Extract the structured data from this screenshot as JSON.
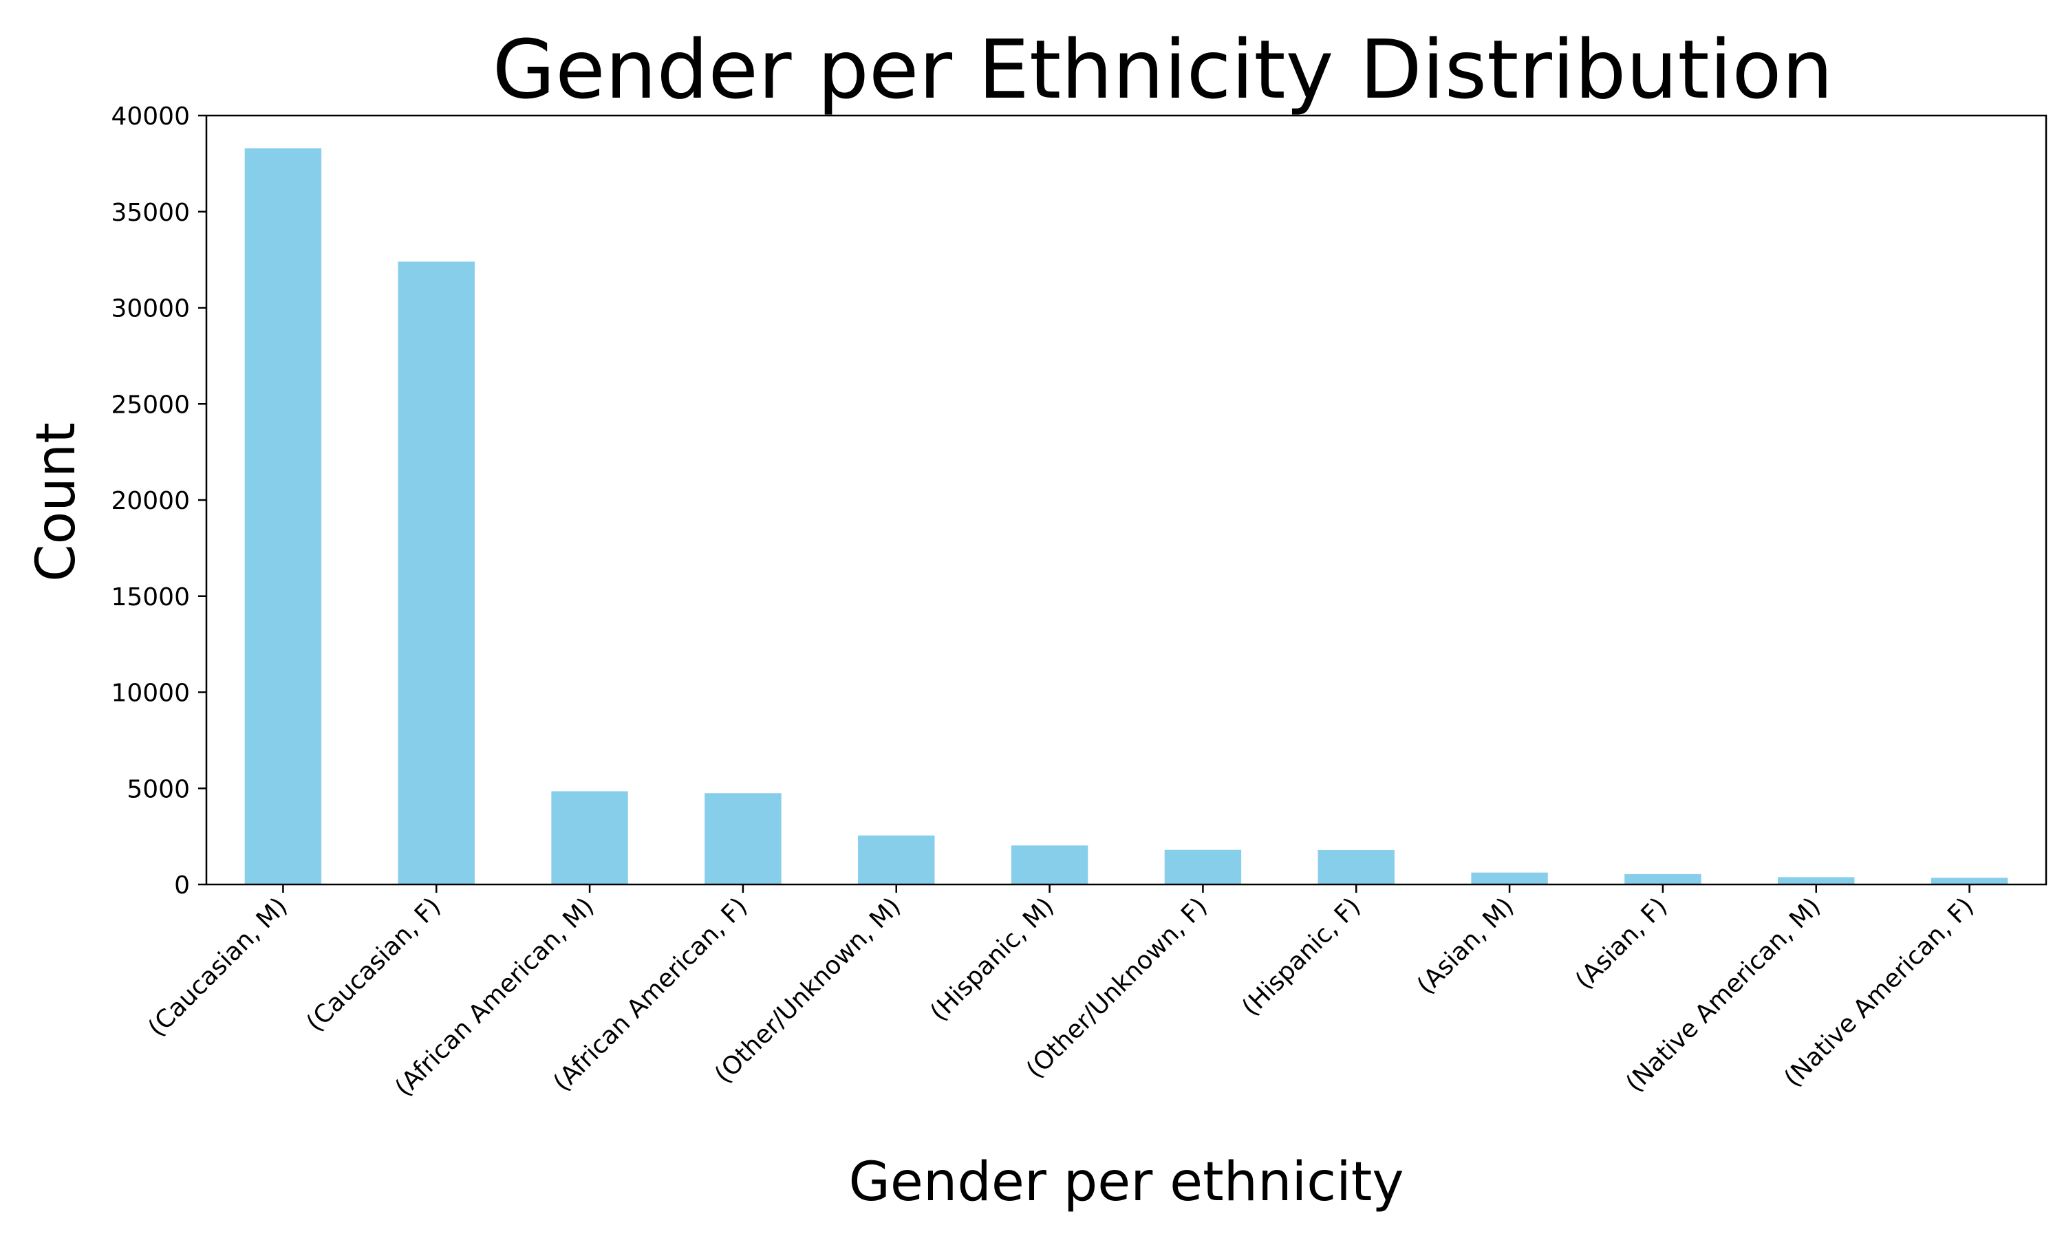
{
  "chart_data": {
    "type": "bar",
    "title": "Gender per Ethnicity Distribution",
    "xlabel": "Gender per ethnicity",
    "ylabel": "Count",
    "categories": [
      "(Caucasian, M)",
      "(Caucasian, F)",
      "(African American, M)",
      "(African American, F)",
      "(Other/Unknown, M)",
      "(Hispanic, M)",
      "(Other/Unknown, F)",
      "(Hispanic, F)",
      "(Asian, M)",
      "(Asian, F)",
      "(Native American, M)",
      "(Native American, F)"
    ],
    "values": [
      38300,
      32400,
      4850,
      4750,
      2550,
      2030,
      1800,
      1790,
      620,
      540,
      380,
      350
    ],
    "ylim": [
      0,
      40000
    ],
    "yticks": [
      0,
      5000,
      10000,
      15000,
      20000,
      25000,
      30000,
      35000,
      40000
    ],
    "ytick_labels": [
      "0",
      "5000",
      "10000",
      "15000",
      "20000",
      "25000",
      "30000",
      "35000",
      "40000"
    ],
    "bar_color": "#87ceeb",
    "grid": false,
    "legend": "none"
  }
}
